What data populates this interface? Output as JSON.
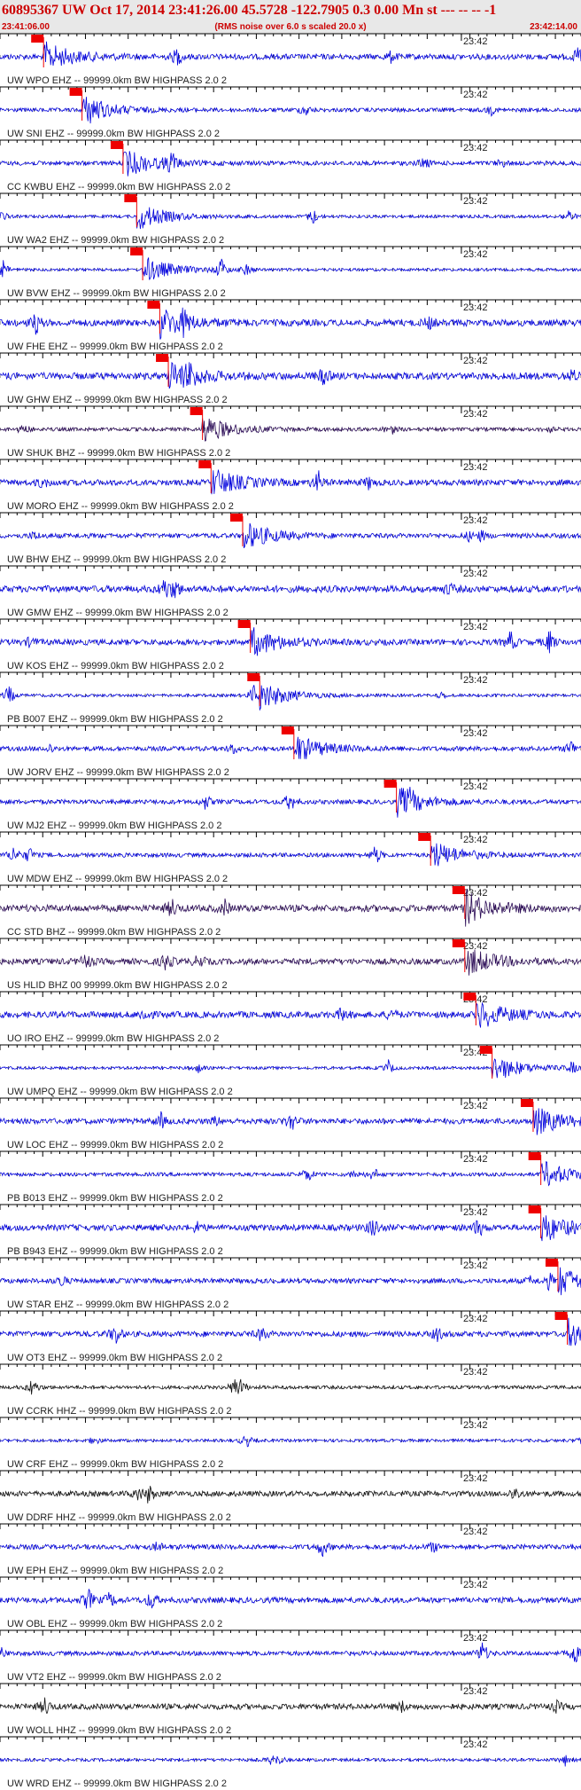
{
  "header": {
    "title": "60895367 UW Oct 17, 2014 23:41:26.00   45.5728 -122.7905  0.3 0.00 Mn st --- -- --  -1",
    "start_time": "23:41:06.00",
    "note": "(RMS noise over 6.0 s scaled 20.0 x)",
    "end_time": "23:42:14.00"
  },
  "time_axis": {
    "xlim": [
      0,
      68
    ],
    "ticks": [
      {
        "value": 54,
        "label": "23:42"
      }
    ]
  },
  "traces": [
    {
      "label": "UW WPO EHZ -- 99999.0km BW  HIGHPASS  2.0  2",
      "color": "#0000dd",
      "pick": 5.1
    },
    {
      "label": "UW SNI EHZ -- 99999.0km BW  HIGHPASS  2.0  2",
      "color": "#0000dd",
      "pick": 9.6
    },
    {
      "label": "CC KWBU EHZ -- 99999.0km BW  HIGHPASS  2.0  2",
      "color": "#0000dd",
      "pick": 14.4
    },
    {
      "label": "UW WA2 EHZ -- 99999.0km BW  HIGHPASS  2.0  2",
      "color": "#0000dd",
      "pick": 16.0
    },
    {
      "label": "UW BVW EHZ -- 99999.0km BW  HIGHPASS  2.0  2",
      "color": "#0000dd",
      "pick": 16.7
    },
    {
      "label": "UW FHE EHZ -- 99999.0km BW  HIGHPASS  2.0  2",
      "color": "#0000dd",
      "pick": 18.7
    },
    {
      "label": "UW GHW EHZ -- 99999.0km BW  HIGHPASS  2.0  2",
      "color": "#0000dd",
      "pick": 19.7
    },
    {
      "label": "UW SHUK BHZ -- 99999.0km BW  HIGHPASS  2.0  2",
      "color": "#2a0a55",
      "pick": 23.7
    },
    {
      "label": "UW MORO EHZ -- 99999.0km BW  HIGHPASS  2.0  2",
      "color": "#0000dd",
      "pick": 24.7
    },
    {
      "label": "UW BHW EHZ -- 99999.0km BW  HIGHPASS  2.0  2",
      "color": "#0000dd",
      "pick": 28.4
    },
    {
      "label": "UW GMW EHZ -- 99999.0km BW  HIGHPASS  2.0  2",
      "color": "#0000dd",
      "pick": null
    },
    {
      "label": "UW KOS EHZ -- 99999.0km BW  HIGHPASS  2.0  2",
      "color": "#0000dd",
      "pick": 29.3
    },
    {
      "label": "PB B007 EHZ -- 99999.0km BW  HIGHPASS  2.0  2",
      "color": "#0000dd",
      "pick": 30.4
    },
    {
      "label": "UW JORV EHZ -- 99999.0km BW  HIGHPASS  2.0  2",
      "color": "#0000dd",
      "pick": 34.4
    },
    {
      "label": "UW MJ2 EHZ -- 99999.0km BW  HIGHPASS  2.0  2",
      "color": "#0000dd",
      "pick": 46.4
    },
    {
      "label": "UW MDW EHZ -- 99999.0km BW  HIGHPASS  2.0  2",
      "color": "#0000dd",
      "pick": 50.4
    },
    {
      "label": "CC STD BHZ -- 99999.0km BW  HIGHPASS  2.0  2",
      "color": "#2a0a55",
      "pick": 54.4
    },
    {
      "label": "US HLID BHZ 00 99999.0km BW  HIGHPASS  2.0  2",
      "color": "#2a0a55",
      "pick": 54.4
    },
    {
      "label": "UO IRO EHZ -- 99999.0km BW  HIGHPASS  2.0  2",
      "color": "#0000dd",
      "pick": 55.7
    },
    {
      "label": "UW UMPQ EHZ -- 99999.0km BW  HIGHPASS  2.0  2",
      "color": "#0000dd",
      "pick": 57.6
    },
    {
      "label": "UW LOC EHZ -- 99999.0km BW  HIGHPASS  2.0  2",
      "color": "#0000dd",
      "pick": 62.4
    },
    {
      "label": "PB B013 EHZ -- 99999.0km BW  HIGHPASS  2.0  2",
      "color": "#0000dd",
      "pick": 63.3
    },
    {
      "label": "PB B943 EHZ -- 99999.0km BW  HIGHPASS  2.0  2",
      "color": "#0000dd",
      "pick": 63.3
    },
    {
      "label": "UW STAR EHZ -- 99999.0km BW  HIGHPASS  2.0  2",
      "color": "#0000dd",
      "pick": 65.3
    },
    {
      "label": "UW OT3 EHZ -- 99999.0km BW  HIGHPASS  2.0  2",
      "color": "#0000dd",
      "pick": 66.4
    },
    {
      "label": "UW CCRK HHZ -- 99999.0km BW  HIGHPASS  2.0  2",
      "color": "#111111",
      "pick": null
    },
    {
      "label": "UW CRF EHZ -- 99999.0km BW  HIGHPASS  2.0  2",
      "color": "#0000dd",
      "pick": null
    },
    {
      "label": "UW DDRF HHZ -- 99999.0km BW  HIGHPASS  2.0  2",
      "color": "#111111",
      "pick": null
    },
    {
      "label": "UW EPH EHZ -- 99999.0km BW  HIGHPASS  2.0  2",
      "color": "#0000dd",
      "pick": null
    },
    {
      "label": "UW OBL EHZ -- 99999.0km BW  HIGHPASS  2.0  2",
      "color": "#0000dd",
      "pick": null
    },
    {
      "label": "UW VT2 EHZ -- 99999.0km BW  HIGHPASS  2.0  2",
      "color": "#0000dd",
      "pick": null
    },
    {
      "label": "UW WOLL HHZ -- 99999.0km BW  HIGHPASS  2.0  2",
      "color": "#111111",
      "pick": null
    },
    {
      "label": "UW WRD EHZ -- 99999.0km BW  HIGHPASS  2.0  2",
      "color": "#0000dd",
      "pick": null
    }
  ]
}
